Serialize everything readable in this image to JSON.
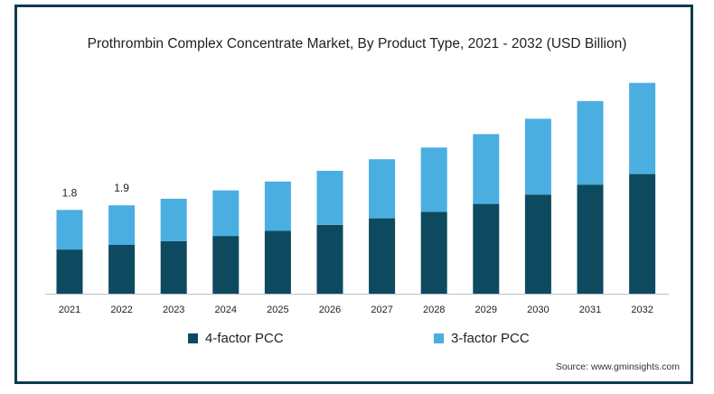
{
  "chart_data": {
    "type": "bar",
    "stacked": true,
    "title": "Prothrombin Complex Concentrate Market, By Product Type, 2021 - 2032 (USD Billion)",
    "categories": [
      "2021",
      "2022",
      "2023",
      "2024",
      "2025",
      "2026",
      "2027",
      "2028",
      "2029",
      "2030",
      "2031",
      "2032"
    ],
    "series": [
      {
        "name": "4-factor PCC",
        "color": "#0d4a5f",
        "values": [
          0.95,
          1.05,
          1.13,
          1.24,
          1.35,
          1.48,
          1.62,
          1.76,
          1.93,
          2.13,
          2.34,
          2.57
        ]
      },
      {
        "name": "3-factor PCC",
        "color": "#4aaee0",
        "values": [
          0.85,
          0.85,
          0.91,
          0.98,
          1.06,
          1.16,
          1.27,
          1.38,
          1.5,
          1.63,
          1.8,
          1.96
        ]
      }
    ],
    "data_labels": [
      {
        "category": "2021",
        "text": "1.8"
      },
      {
        "category": "2022",
        "text": "1.9"
      }
    ],
    "grid": false,
    "legend_position": "bottom"
  },
  "source_text": "Source: www.gminsights.com"
}
